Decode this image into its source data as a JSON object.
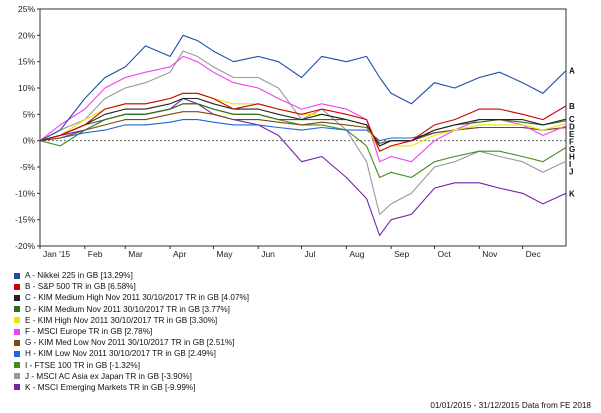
{
  "chart_data": {
    "type": "line",
    "ylim": [
      -20,
      25
    ],
    "ytick_values": [
      -20,
      -15,
      -10,
      -5,
      0,
      5,
      10,
      15,
      20,
      25
    ],
    "ytick_labels": [
      "-20%",
      "-15%",
      "-10%",
      "-5%",
      "0%",
      "5%",
      "10%",
      "15%",
      "20%",
      "25%"
    ],
    "x_tick_labels": [
      "Jan '15",
      "Feb",
      "Mar",
      "Apr",
      "May",
      "Jun",
      "Jul",
      "Aug",
      "Sep",
      "Oct",
      "Nov",
      "Dec"
    ],
    "x_tick_dates": [
      "2015-01-01",
      "2015-02-01",
      "2015-03-01",
      "2015-04-01",
      "2015-05-01",
      "2015-06-01",
      "2015-07-01",
      "2015-08-01",
      "2015-09-01",
      "2015-10-01",
      "2015-11-01",
      "2015-12-01"
    ],
    "x_range": [
      "2015-01-01",
      "2015-12-31"
    ],
    "grid": false,
    "legend_position": "bottom-left",
    "x": [
      "2015-01-01",
      "2015-01-15",
      "2015-02-01",
      "2015-02-15",
      "2015-03-01",
      "2015-03-15",
      "2015-04-01",
      "2015-04-10",
      "2015-04-20",
      "2015-05-01",
      "2015-05-15",
      "2015-06-01",
      "2015-06-15",
      "2015-07-01",
      "2015-07-15",
      "2015-08-01",
      "2015-08-15",
      "2015-08-24",
      "2015-09-01",
      "2015-09-15",
      "2015-10-01",
      "2015-10-15",
      "2015-11-01",
      "2015-11-15",
      "2015-12-01",
      "2015-12-15",
      "2015-12-31"
    ],
    "series": [
      {
        "letter": "A",
        "name": "A - Nikkei 225 in GB [13.29%]",
        "color": "#1c4fa6",
        "values": [
          0,
          2,
          8,
          12,
          14,
          18,
          16,
          20,
          19,
          17,
          15,
          16,
          15,
          12,
          16,
          15,
          16,
          12,
          9,
          7,
          11,
          10,
          12,
          13,
          11,
          9,
          13.3
        ]
      },
      {
        "letter": "B",
        "name": "B - S&P 500 TR in GB [6.58%]",
        "color": "#cc0000",
        "values": [
          0,
          1,
          3,
          6,
          7,
          7,
          8,
          9,
          9,
          8,
          6,
          7,
          6,
          5,
          6,
          5,
          4,
          -2,
          -1,
          0,
          3,
          4,
          6,
          6,
          5,
          4,
          6.6
        ]
      },
      {
        "letter": "C",
        "name": "C - KIM Medium High Nov 2011  30/10/2017 TR in GB [4.07%]",
        "color": "#222222",
        "values": [
          0,
          1,
          3,
          5,
          6,
          6,
          7,
          8,
          8,
          7,
          6,
          6,
          5,
          4,
          5,
          4,
          3,
          -1,
          0,
          0,
          2,
          3,
          4,
          4,
          4,
          3,
          4.1
        ]
      },
      {
        "letter": "D",
        "name": "D - KIM Medium Nov 2011  30/10/2017 TR in GB [3.77%]",
        "color": "#2e6e1a",
        "values": [
          0,
          1,
          3,
          4,
          5,
          5,
          6,
          7,
          7,
          6,
          5,
          5,
          4,
          4,
          4,
          4,
          3,
          -1,
          0,
          0,
          2,
          3,
          3.5,
          4,
          3.5,
          3,
          3.8
        ]
      },
      {
        "letter": "E",
        "name": "E - KIM High Nov 2011  30/10/2017 TR in GB [3.30%]",
        "color": "#e8e800",
        "values": [
          0,
          1,
          4,
          6,
          7,
          7,
          8,
          9,
          9,
          8,
          7,
          7,
          6,
          5,
          5,
          4,
          3,
          -2,
          -1,
          -1,
          1,
          2,
          3,
          3,
          3,
          2,
          3.3
        ]
      },
      {
        "letter": "F",
        "name": "F - MSCI Europe TR in GB [2.78%]",
        "color": "#ee44ee",
        "values": [
          0,
          3,
          6,
          10,
          12,
          13,
          14,
          16,
          15,
          13,
          11,
          10,
          8,
          6,
          7,
          6,
          4,
          -4,
          -3,
          -4,
          0,
          2,
          4,
          4,
          3,
          1,
          2.8
        ]
      },
      {
        "letter": "G",
        "name": "G - KIM Med Low Nov 2011  30/10/2017 TR in GB [2.51%]",
        "color": "#7a4a10",
        "values": [
          0,
          0.5,
          2,
          3,
          4,
          4,
          5,
          5.5,
          5.5,
          5,
          4,
          4,
          3.5,
          3,
          3.5,
          3,
          2.5,
          -0.5,
          0,
          0,
          1.5,
          2,
          2.5,
          2.5,
          2.5,
          2,
          2.5
        ]
      },
      {
        "letter": "H",
        "name": "H - KIM Low Nov 2011  30/10/2017 TR in GB [2.49%]",
        "color": "#2266dd",
        "values": [
          0,
          0.5,
          1.5,
          2,
          3,
          3,
          3.5,
          4,
          4,
          3.5,
          3,
          3,
          2.5,
          2,
          2.5,
          2,
          2,
          0,
          0.5,
          0.5,
          1.5,
          2,
          2.5,
          2.5,
          2.5,
          2,
          2.5
        ]
      },
      {
        "letter": "I",
        "name": "I - FTSE 100 TR in GB [-1.32%]",
        "color": "#448c22",
        "values": [
          0,
          -1,
          2,
          4,
          5,
          5,
          6,
          7,
          7,
          6,
          5,
          5,
          4,
          3,
          3,
          2,
          -1,
          -7,
          -6,
          -7,
          -4,
          -3,
          -2,
          -2,
          -3,
          -4,
          -1.3
        ]
      },
      {
        "letter": "J",
        "name": "J - MSCI AC Asia ex Japan TR in GB [-3.90%]",
        "color": "#999999",
        "values": [
          0,
          2,
          4,
          8,
          10,
          11,
          13,
          17,
          16,
          14,
          12,
          12,
          10,
          4,
          6,
          2,
          -4,
          -14,
          -12,
          -10,
          -5,
          -4,
          -2,
          -3,
          -4,
          -6,
          -3.9
        ]
      },
      {
        "letter": "K",
        "name": "K - MSCI Emerging Markets TR in GB [-9.99%]",
        "color": "#7722aa",
        "values": [
          0,
          1,
          2,
          4,
          5,
          5,
          6,
          8,
          7,
          5,
          4,
          3,
          1,
          -4,
          -3,
          -7,
          -11,
          -18,
          -15,
          -14,
          -9,
          -8,
          -8,
          -9,
          -10,
          -12,
          -10
        ]
      }
    ]
  },
  "footer_text": "01/01/2015 - 31/12/2015 Data from FE 2018"
}
